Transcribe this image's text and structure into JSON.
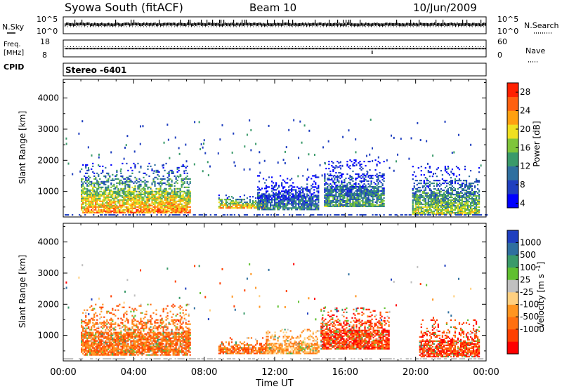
{
  "header": {
    "station": "Syowa South (fitACF)",
    "beam": "Beam 10",
    "date": "10/Jun/2009"
  },
  "status_panels": {
    "nsky_label": "N.Sky",
    "nsearch_label": "N.Search",
    "noise_ticks_left": [
      "10^5",
      "10^0"
    ],
    "noise_ticks_right": [
      "10^5",
      "10^0"
    ],
    "freq_label": "Freq.",
    "freq_unit": "[MHz]",
    "freq_ticks": [
      "18",
      "8"
    ],
    "nave_label": "Nave",
    "nave_ticks": [
      "60",
      "0"
    ],
    "cpid_label": "CPID",
    "cpid_value": "Stereo -6401"
  },
  "colors": {
    "power": [
      "#0000ff",
      "#1f3fbf",
      "#2f6f9f",
      "#3a9a6a",
      "#7fc53a",
      "#f0e020",
      "#ffa010",
      "#ff6010",
      "#ff2000"
    ],
    "velocity_neg": [
      "#ff0000",
      "#ff4000",
      "#ff7010",
      "#ff9520",
      "#ffd080"
    ],
    "velocity_pos": [
      "#c0c0c0",
      "#60c030",
      "#3a9a6a",
      "#2f6f9f",
      "#1f3fbf"
    ]
  },
  "chart_data": [
    {
      "type": "heatmap",
      "title": "",
      "xlabel": "Time UT",
      "ylabel": "Slant Range [km]",
      "x_range": [
        "00:00",
        "24:00"
      ],
      "x_ticks": [
        "00:00",
        "04:00",
        "08:00",
        "12:00",
        "16:00",
        "20:00",
        "00:00"
      ],
      "ylim": [
        180,
        4600
      ],
      "y_ticks": [
        "1000",
        "2000",
        "3000",
        "4000"
      ],
      "colorbar_label": "Power [dB]",
      "colorbar_ticks": [
        "4",
        "8",
        "12",
        "16",
        "20",
        "24",
        "28"
      ],
      "colorbar_range": [
        3,
        30
      ],
      "echo_regions": [
        {
          "t_start": 1.0,
          "t_end": 7.2,
          "r_start": 300,
          "r_end": 1900,
          "peak": 24
        },
        {
          "t_start": 8.8,
          "t_end": 11.6,
          "r_start": 450,
          "r_end": 900,
          "peak": 22
        },
        {
          "t_start": 11.0,
          "t_end": 14.5,
          "r_start": 400,
          "r_end": 1500,
          "peak": 12
        },
        {
          "t_start": 14.8,
          "t_end": 18.2,
          "r_start": 500,
          "r_end": 2000,
          "peak": 14
        },
        {
          "t_start": 19.8,
          "t_end": 23.6,
          "r_start": 250,
          "r_end": 1800,
          "peak": 18
        }
      ]
    },
    {
      "type": "heatmap",
      "title": "",
      "xlabel": "Time UT",
      "ylabel": "Slant Range [km]",
      "x_range": [
        "00:00",
        "24:00"
      ],
      "x_ticks": [
        "00:00",
        "04:00",
        "08:00",
        "12:00",
        "16:00",
        "20:00",
        "00:00"
      ],
      "ylim": [
        180,
        4600
      ],
      "y_ticks": [
        "1000",
        "2000",
        "3000",
        "4000"
      ],
      "colorbar_label": "Velocity [m s^-1]",
      "colorbar_ticks": [
        "1000",
        "500",
        "100",
        "25",
        "-25",
        "-100",
        "-500",
        "-1000"
      ],
      "echo_regions": [
        {
          "t_start": 1.0,
          "t_end": 7.2,
          "r_start": 350,
          "r_end": 2000,
          "dominant": "-100"
        },
        {
          "t_start": 8.8,
          "t_end": 11.8,
          "r_start": 400,
          "r_end": 900,
          "dominant": "-100"
        },
        {
          "t_start": 11.5,
          "t_end": 14.5,
          "r_start": 400,
          "r_end": 1200,
          "dominant": "-25"
        },
        {
          "t_start": 14.6,
          "t_end": 18.5,
          "r_start": 550,
          "r_end": 1900,
          "dominant": "-500"
        },
        {
          "t_start": 20.2,
          "t_end": 23.6,
          "r_start": 300,
          "r_end": 1500,
          "dominant": "-500"
        }
      ]
    }
  ]
}
